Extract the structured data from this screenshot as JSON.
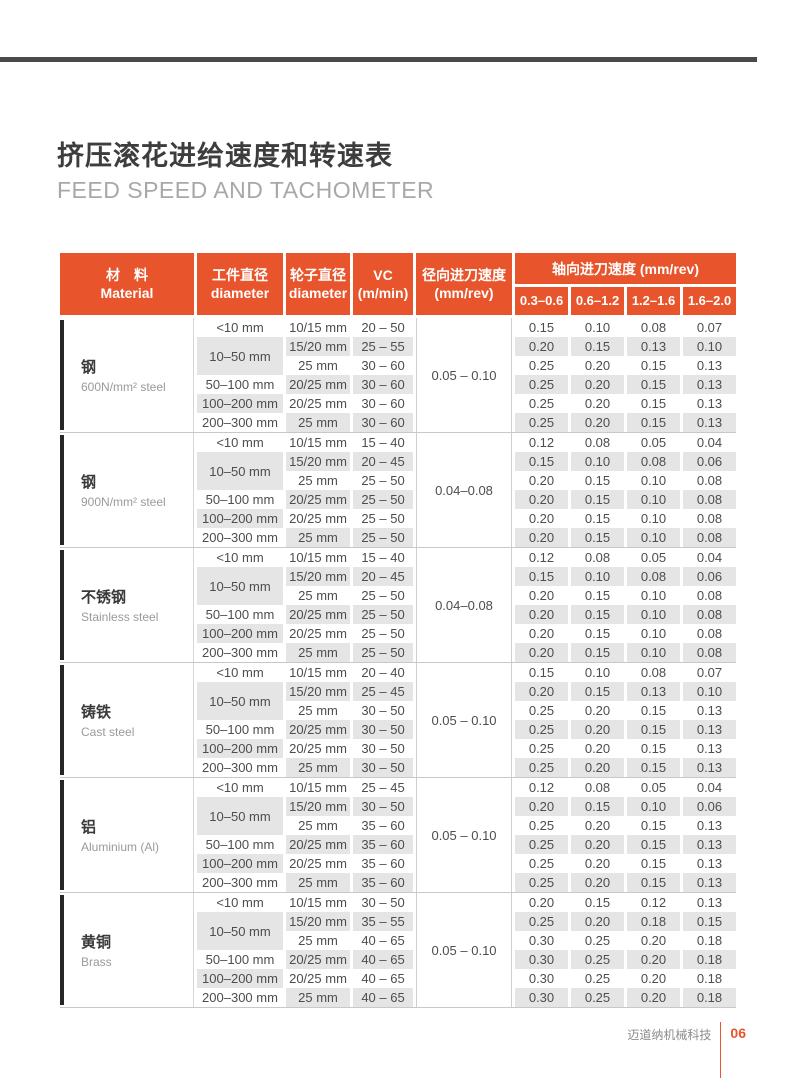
{
  "page": {
    "title_zh": "挤压滚花进给速度和转速表",
    "title_en": "FEED SPEED AND TACHOMETER",
    "footer": {
      "company": "迈道纳机械科技",
      "page_number": "06"
    }
  },
  "colors": {
    "accent": "#e8542b",
    "row_shade": "#e5e5e5",
    "rule": "#4a4a4a"
  },
  "table": {
    "header": {
      "material_zh": "材　料",
      "material_en": "Material",
      "workpiece_zh": "工件直径",
      "workpiece_en": "diameter",
      "wheel_zh": "轮子直径",
      "wheel_en": "diameter",
      "vc_zh": "VC",
      "vc_en": "(m/min)",
      "radial_zh": "径向进刀速度",
      "radial_en": "(mm/rev)",
      "axial_title": "轴向进刀速度 (mm/rev)",
      "axial_ranges": [
        "0.3–0.6",
        "0.6–1.2",
        "1.2–1.6",
        "1.6–2.0"
      ]
    },
    "groups": [
      {
        "name_zh": "钢",
        "name_en": "600N/mm² steel",
        "radial": "0.05 – 0.10",
        "workpiece_cells": [
          {
            "label": "<10 mm",
            "span": 1
          },
          {
            "label": "10–50 mm",
            "span": 2
          },
          {
            "label": "50–100 mm",
            "span": 1
          },
          {
            "label": "100–200 mm",
            "span": 1
          },
          {
            "label": "200–300 mm",
            "span": 1
          }
        ],
        "rows": [
          {
            "wheel": "10/15 mm",
            "vc": "20 – 50",
            "axial": [
              "0.15",
              "0.10",
              "0.08",
              "0.07"
            ]
          },
          {
            "wheel": "15/20 mm",
            "vc": "25 – 55",
            "axial": [
              "0.20",
              "0.15",
              "0.13",
              "0.10"
            ]
          },
          {
            "wheel": "25 mm",
            "vc": "30 – 60",
            "axial": [
              "0.25",
              "0.20",
              "0.15",
              "0.13"
            ]
          },
          {
            "wheel": "20/25 mm",
            "vc": "30 – 60",
            "axial": [
              "0.25",
              "0.20",
              "0.15",
              "0.13"
            ]
          },
          {
            "wheel": "20/25 mm",
            "vc": "30 – 60",
            "axial": [
              "0.25",
              "0.20",
              "0.15",
              "0.13"
            ]
          },
          {
            "wheel": "25 mm",
            "vc": "30 – 60",
            "axial": [
              "0.25",
              "0.20",
              "0.15",
              "0.13"
            ]
          }
        ]
      },
      {
        "name_zh": "钢",
        "name_en": "900N/mm² steel",
        "radial": "0.04–0.08",
        "workpiece_cells": [
          {
            "label": "<10 mm",
            "span": 1
          },
          {
            "label": "10–50 mm",
            "span": 2
          },
          {
            "label": "50–100 mm",
            "span": 1
          },
          {
            "label": "100–200 mm",
            "span": 1
          },
          {
            "label": "200–300 mm",
            "span": 1
          }
        ],
        "rows": [
          {
            "wheel": "10/15 mm",
            "vc": "15 – 40",
            "axial": [
              "0.12",
              "0.08",
              "0.05",
              "0.04"
            ]
          },
          {
            "wheel": "15/20 mm",
            "vc": "20 – 45",
            "axial": [
              "0.15",
              "0.10",
              "0.08",
              "0.06"
            ]
          },
          {
            "wheel": "25 mm",
            "vc": "25 – 50",
            "axial": [
              "0.20",
              "0.15",
              "0.10",
              "0.08"
            ]
          },
          {
            "wheel": "20/25 mm",
            "vc": "25 – 50",
            "axial": [
              "0.20",
              "0.15",
              "0.10",
              "0.08"
            ]
          },
          {
            "wheel": "20/25 mm",
            "vc": "25 – 50",
            "axial": [
              "0.20",
              "0.15",
              "0.10",
              "0.08"
            ]
          },
          {
            "wheel": "25 mm",
            "vc": "25 – 50",
            "axial": [
              "0.20",
              "0.15",
              "0.10",
              "0.08"
            ]
          }
        ]
      },
      {
        "name_zh": "不锈钢",
        "name_en": "Stainless steel",
        "radial": "0.04–0.08",
        "workpiece_cells": [
          {
            "label": "<10 mm",
            "span": 1
          },
          {
            "label": "10–50 mm",
            "span": 2
          },
          {
            "label": "50–100 mm",
            "span": 1
          },
          {
            "label": "100–200 mm",
            "span": 1
          },
          {
            "label": "200–300 mm",
            "span": 1
          }
        ],
        "rows": [
          {
            "wheel": "10/15 mm",
            "vc": "15 – 40",
            "axial": [
              "0.12",
              "0.08",
              "0.05",
              "0.04"
            ]
          },
          {
            "wheel": "15/20 mm",
            "vc": "20 – 45",
            "axial": [
              "0.15",
              "0.10",
              "0.08",
              "0.06"
            ]
          },
          {
            "wheel": "25 mm",
            "vc": "25 – 50",
            "axial": [
              "0.20",
              "0.15",
              "0.10",
              "0.08"
            ]
          },
          {
            "wheel": "20/25 mm",
            "vc": "25 – 50",
            "axial": [
              "0.20",
              "0.15",
              "0.10",
              "0.08"
            ]
          },
          {
            "wheel": "20/25 mm",
            "vc": "25 – 50",
            "axial": [
              "0.20",
              "0.15",
              "0.10",
              "0.08"
            ]
          },
          {
            "wheel": "25 mm",
            "vc": "25 – 50",
            "axial": [
              "0.20",
              "0.15",
              "0.10",
              "0.08"
            ]
          }
        ]
      },
      {
        "name_zh": "铸铁",
        "name_en": "Cast steel",
        "radial": "0.05 – 0.10",
        "workpiece_cells": [
          {
            "label": "<10 mm",
            "span": 1
          },
          {
            "label": "10–50 mm",
            "span": 2
          },
          {
            "label": "50–100 mm",
            "span": 1
          },
          {
            "label": "100–200 mm",
            "span": 1
          },
          {
            "label": "200–300 mm",
            "span": 1
          }
        ],
        "rows": [
          {
            "wheel": "10/15 mm",
            "vc": "20 – 40",
            "axial": [
              "0.15",
              "0.10",
              "0.08",
              "0.07"
            ]
          },
          {
            "wheel": "15/20 mm",
            "vc": "25 – 45",
            "axial": [
              "0.20",
              "0.15",
              "0.13",
              "0.10"
            ]
          },
          {
            "wheel": "25 mm",
            "vc": "30 – 50",
            "axial": [
              "0.25",
              "0.20",
              "0.15",
              "0.13"
            ]
          },
          {
            "wheel": "20/25 mm",
            "vc": "30 – 50",
            "axial": [
              "0.25",
              "0.20",
              "0.15",
              "0.13"
            ]
          },
          {
            "wheel": "20/25 mm",
            "vc": "30 – 50",
            "axial": [
              "0.25",
              "0.20",
              "0.15",
              "0.13"
            ]
          },
          {
            "wheel": "25 mm",
            "vc": "30 – 50",
            "axial": [
              "0.25",
              "0.20",
              "0.15",
              "0.13"
            ]
          }
        ]
      },
      {
        "name_zh": "铝",
        "name_en": "Aluminium (Al)",
        "radial": "0.05 – 0.10",
        "workpiece_cells": [
          {
            "label": "<10 mm",
            "span": 1
          },
          {
            "label": "10–50 mm",
            "span": 2
          },
          {
            "label": "50–100 mm",
            "span": 1
          },
          {
            "label": "100–200 mm",
            "span": 1
          },
          {
            "label": "200–300 mm",
            "span": 1
          }
        ],
        "rows": [
          {
            "wheel": "10/15 mm",
            "vc": "25 – 45",
            "axial": [
              "0.12",
              "0.08",
              "0.05",
              "0.04"
            ]
          },
          {
            "wheel": "15/20 mm",
            "vc": "30 – 50",
            "axial": [
              "0.20",
              "0.15",
              "0.10",
              "0.06"
            ]
          },
          {
            "wheel": "25 mm",
            "vc": "35 – 60",
            "axial": [
              "0.25",
              "0.20",
              "0.15",
              "0.13"
            ]
          },
          {
            "wheel": "20/25 mm",
            "vc": "35 – 60",
            "axial": [
              "0.25",
              "0.20",
              "0.15",
              "0.13"
            ]
          },
          {
            "wheel": "20/25 mm",
            "vc": "35 – 60",
            "axial": [
              "0.25",
              "0.20",
              "0.15",
              "0.13"
            ]
          },
          {
            "wheel": "25 mm",
            "vc": "35 – 60",
            "axial": [
              "0.25",
              "0.20",
              "0.15",
              "0.13"
            ]
          }
        ]
      },
      {
        "name_zh": "黄铜",
        "name_en": "Brass",
        "radial": "0.05 – 0.10",
        "workpiece_cells": [
          {
            "label": "<10 mm",
            "span": 1
          },
          {
            "label": "10–50 mm",
            "span": 2
          },
          {
            "label": "50–100 mm",
            "span": 1
          },
          {
            "label": "100–200 mm",
            "span": 1
          },
          {
            "label": "200–300 mm",
            "span": 1
          }
        ],
        "rows": [
          {
            "wheel": "10/15 mm",
            "vc": "30 – 50",
            "axial": [
              "0.20",
              "0.15",
              "0.12",
              "0.13"
            ]
          },
          {
            "wheel": "15/20 mm",
            "vc": "35 – 55",
            "axial": [
              "0.25",
              "0.20",
              "0.18",
              "0.15"
            ]
          },
          {
            "wheel": "25 mm",
            "vc": "40 – 65",
            "axial": [
              "0.30",
              "0.25",
              "0.20",
              "0.18"
            ]
          },
          {
            "wheel": "20/25 mm",
            "vc": "40 – 65",
            "axial": [
              "0.30",
              "0.25",
              "0.20",
              "0.18"
            ]
          },
          {
            "wheel": "20/25 mm",
            "vc": "40 – 65",
            "axial": [
              "0.30",
              "0.25",
              "0.20",
              "0.18"
            ]
          },
          {
            "wheel": "25 mm",
            "vc": "40 – 65",
            "axial": [
              "0.30",
              "0.25",
              "0.20",
              "0.18"
            ]
          }
        ]
      }
    ]
  }
}
